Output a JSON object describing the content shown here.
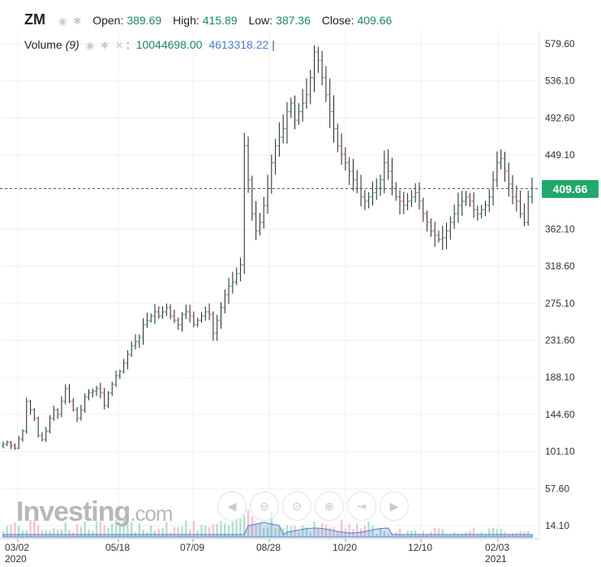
{
  "legend": {
    "symbol": "ZM",
    "open_label": "Open:",
    "open_value": "389.69",
    "high_label": "High:",
    "high_value": "415.89",
    "low_label": "Low:",
    "low_value": "387.36",
    "close_label": "Close:",
    "close_value": "409.66",
    "volume_label": "Volume",
    "volume_period": "(9)",
    "volume_value": "10044698.00",
    "volume_ma_value": "4613318.22",
    "cursor": "|"
  },
  "price_badge": "409.66",
  "logo": {
    "text": "Investing",
    "suffix": ".com"
  },
  "nav_icons": [
    "left-arrow-icon",
    "zoom-out-icon",
    "zoom-reset-icon",
    "zoom-in-icon",
    "scroll-to-realtime-icon",
    "right-arrow-icon"
  ],
  "colors": {
    "up": "#22a86b",
    "down": "#e05a5a",
    "bar": "#222222",
    "volume_area": "#4a7fd0",
    "badge": "#22a86b"
  },
  "chart_data": {
    "type": "candlestick",
    "title": "",
    "y_axis": {
      "position": "right",
      "ticks": [
        "579.60",
        "536.10",
        "492.60",
        "449.10",
        "362.10",
        "318.60",
        "275.10",
        "231.60",
        "188.10",
        "144.60",
        "101.10",
        "57.60",
        "14.10"
      ],
      "ylim": [
        14.1,
        600
      ]
    },
    "x_axis": {
      "ticks": [
        {
          "label": "03/02",
          "sub": "2020"
        },
        {
          "label": "05/18",
          "sub": ""
        },
        {
          "label": "07/09",
          "sub": ""
        },
        {
          "label": "08/28",
          "sub": ""
        },
        {
          "label": "10/20",
          "sub": ""
        },
        {
          "label": "12/10",
          "sub": ""
        },
        {
          "label": "02/03",
          "sub": "2021"
        }
      ]
    },
    "last_price": 409.66,
    "grid": true,
    "series": [
      {
        "name": "ZM",
        "close": [
          110,
          112,
          108,
          105,
          116,
          125,
          160,
          150,
          140,
          120,
          115,
          125,
          140,
          150,
          145,
          160,
          175,
          160,
          150,
          140,
          150,
          165,
          170,
          172,
          175,
          170,
          155,
          170,
          180,
          190,
          195,
          205,
          215,
          225,
          230,
          235,
          250,
          255,
          260,
          265,
          260,
          265,
          270,
          260,
          255,
          250,
          262,
          265,
          260,
          250,
          255,
          260,
          265,
          262,
          240,
          255,
          270,
          285,
          295,
          300,
          310,
          320,
          460,
          420,
          380,
          360,
          370,
          390,
          410,
          440,
          460,
          470,
          480,
          500,
          510,
          490,
          500,
          510,
          520,
          540,
          570,
          560,
          540,
          520,
          500,
          480,
          460,
          450,
          440,
          430,
          420,
          410,
          400,
          395,
          400,
          405,
          410,
          420,
          440,
          430,
          410,
          400,
          395,
          390,
          395,
          400,
          405,
          395,
          380,
          370,
          360,
          355,
          350,
          352,
          360,
          370,
          380,
          390,
          395,
          400,
          395,
          385,
          380,
          385,
          390,
          400,
          420,
          440,
          445,
          430,
          415,
          400,
          395,
          380,
          370,
          400,
          409.66
        ]
      }
    ],
    "volume": {
      "title": "Volume",
      "period": 9,
      "last_value": 10044698.0,
      "ma_last_value": 4613318.22
    }
  }
}
